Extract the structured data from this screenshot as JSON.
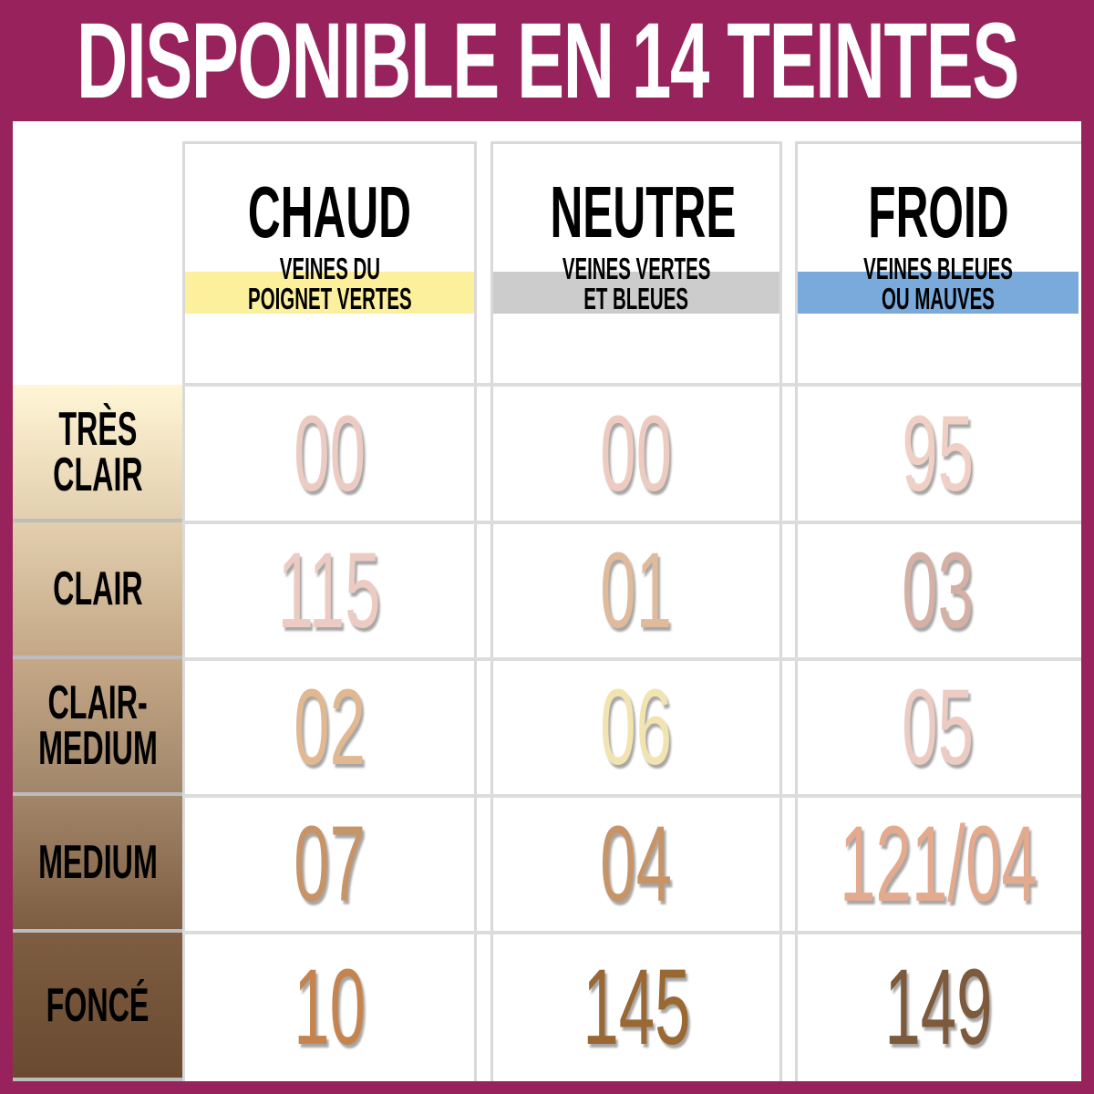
{
  "title": "DISPONIBLE EN 14 TEINTES",
  "columns": [
    {
      "name": "CHAUD",
      "sub1": "VEINES DU",
      "sub2": "POIGNET VERTES",
      "band_color": "#fdf09c"
    },
    {
      "name": "NEUTRE",
      "sub1": "VEINES VERTES",
      "sub2": "ET BLEUES",
      "band_color": "#cccccc"
    },
    {
      "name": "FROID",
      "sub1": "VEINES BLEUES",
      "sub2": "OU MAUVES",
      "band_color": "#7aaadb"
    }
  ],
  "rows": [
    {
      "label1": "TRÈS",
      "label2": "CLAIR",
      "shades": [
        {
          "code": "00",
          "color": "#eccbc2"
        },
        {
          "code": "00",
          "color": "#eecbc0"
        },
        {
          "code": "95",
          "color": "#f0d0c4"
        }
      ]
    },
    {
      "label1": "CLAIR",
      "label2": "",
      "shades": [
        {
          "code": "115",
          "color": "#eccbc2"
        },
        {
          "code": "01",
          "color": "#dfbb9c"
        },
        {
          "code": "03",
          "color": "#d4b1a4"
        }
      ]
    },
    {
      "label1": "CLAIR-",
      "label2": "MEDIUM",
      "shades": [
        {
          "code": "02",
          "color": "#e0b892"
        },
        {
          "code": "06",
          "color": "#f2e4b0"
        },
        {
          "code": "05",
          "color": "#eccbc2"
        }
      ]
    },
    {
      "label1": "MEDIUM",
      "label2": "",
      "shades": [
        {
          "code": "07",
          "color": "#c79467"
        },
        {
          "code": "04",
          "color": "#c79467"
        },
        {
          "code": "121/04",
          "color": "#e3aa8e"
        }
      ]
    },
    {
      "label1": "FONCÉ",
      "label2": "",
      "shades": [
        {
          "code": "10",
          "color": "#c5844e"
        },
        {
          "code": "145",
          "color": "#9a6832"
        },
        {
          "code": "149",
          "color": "#7d5a3b"
        }
      ]
    }
  ],
  "colors": {
    "frame": "#98235c",
    "row_gradient_top": "#fdf5d8",
    "row_gradient_bottom": "#6b4a30"
  }
}
